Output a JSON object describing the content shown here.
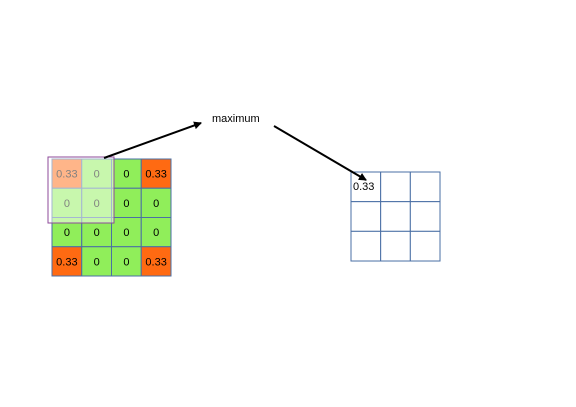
{
  "label": "maximum",
  "input_grid": {
    "rows": [
      [
        "0.33",
        "0",
        "0",
        "0.33"
      ],
      [
        "0",
        "0",
        "0",
        "0"
      ],
      [
        "0",
        "0",
        "0",
        "0"
      ],
      [
        "0.33",
        "0",
        "0",
        "0.33"
      ]
    ],
    "highlighted_rows": [
      0,
      1
    ],
    "highlighted_cols": [
      0,
      1
    ]
  },
  "output_grid": {
    "rows": [
      [
        "0.33",
        "",
        ""
      ],
      [
        "",
        "",
        ""
      ],
      [
        "",
        "",
        ""
      ]
    ]
  },
  "colors": {
    "cell_green": "#90EE5A",
    "cell_orange": "#FF6A12",
    "grid_border": "#4A6FA5",
    "window_fill": "#FFFFFF",
    "window_border": "#8E4A9A",
    "arrow": "#000000"
  }
}
